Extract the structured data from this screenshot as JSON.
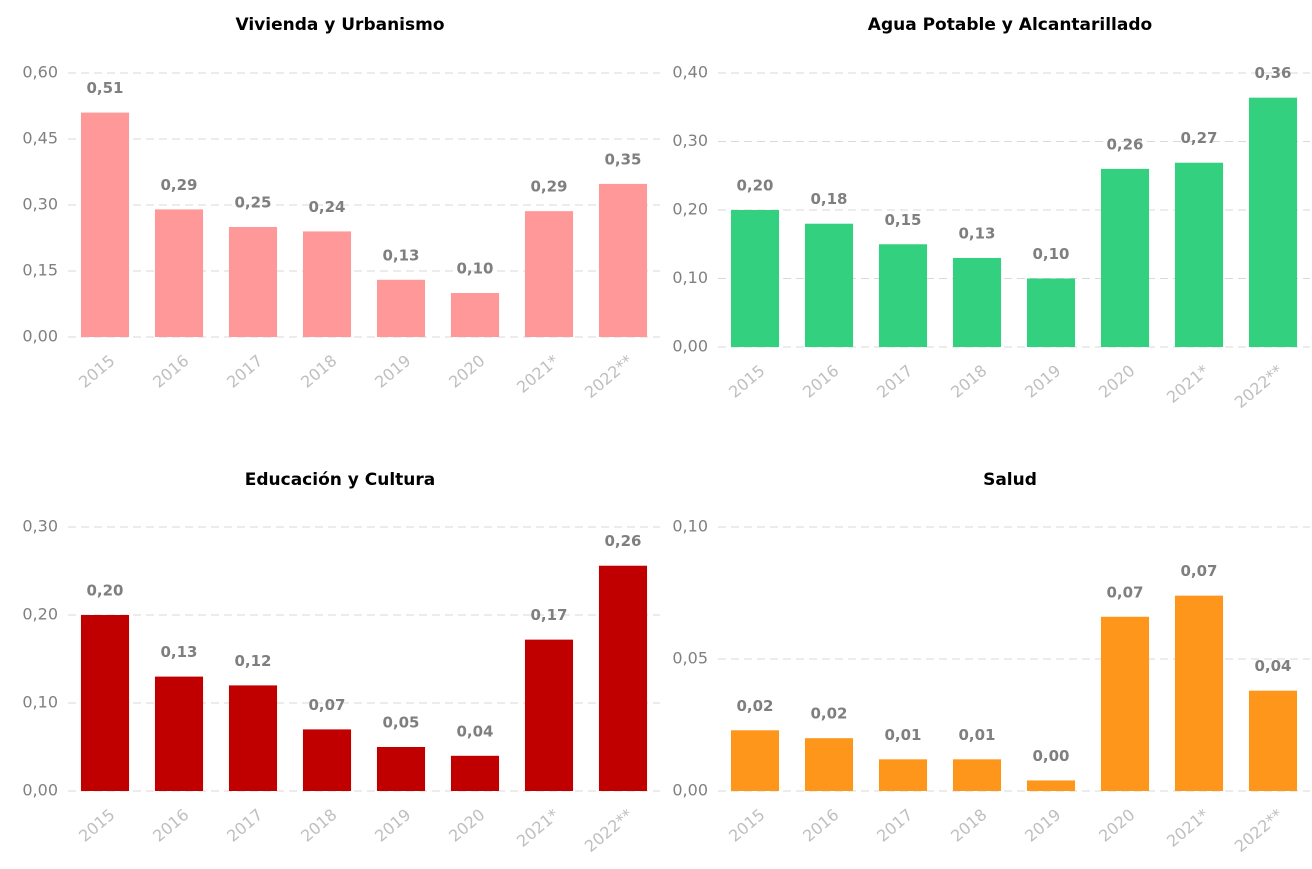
{
  "chart_data": [
    {
      "type": "bar",
      "title": "Vivienda y Urbanismo",
      "color": "#ff9999",
      "grid": true,
      "categories": [
        "2015",
        "2016",
        "2017",
        "2018",
        "2019",
        "2020",
        "2021*",
        "2022**"
      ],
      "values": [
        0.51,
        0.29,
        0.25,
        0.24,
        0.13,
        0.1,
        0.286,
        0.348
      ],
      "value_labels": [
        "0,51",
        "0,29",
        "0,25",
        "0,24",
        "0,13",
        "0,10",
        "0,29",
        "0,35"
      ],
      "ylim": [
        0,
        0.6
      ],
      "yticks": [
        {
          "value": 0,
          "label": "0,00"
        },
        {
          "value": 0.15,
          "label": "0,15"
        },
        {
          "value": 0.3,
          "label": "0,30"
        },
        {
          "value": 0.45,
          "label": "0,45"
        },
        {
          "value": 0.6,
          "label": "0,60"
        }
      ]
    },
    {
      "type": "bar",
      "title": "Agua Potable y Alcantarillado",
      "color": "#33d17f",
      "grid": true,
      "categories": [
        "2015",
        "2016",
        "2017",
        "2018",
        "2019",
        "2020",
        "2021*",
        "2022**"
      ],
      "values": [
        0.2,
        0.18,
        0.15,
        0.13,
        0.1,
        0.26,
        0.269,
        0.364
      ],
      "value_labels": [
        "0,20",
        "0,18",
        "0,15",
        "0,13",
        "0,10",
        "0,26",
        "0,27",
        "0,36"
      ],
      "ylim": [
        0,
        0.4
      ],
      "yticks": [
        {
          "value": 0,
          "label": "0,00"
        },
        {
          "value": 0.1,
          "label": "0,10"
        },
        {
          "value": 0.2,
          "label": "0,20"
        },
        {
          "value": 0.3,
          "label": "0,30"
        },
        {
          "value": 0.4,
          "label": "0,40"
        }
      ]
    },
    {
      "type": "bar",
      "title": "Educación y Cultura",
      "color": "#c00000",
      "grid": true,
      "categories": [
        "2015",
        "2016",
        "2017",
        "2018",
        "2019",
        "2020",
        "2021*",
        "2022**"
      ],
      "values": [
        0.2,
        0.13,
        0.12,
        0.07,
        0.05,
        0.04,
        0.172,
        0.256
      ],
      "value_labels": [
        "0,20",
        "0,13",
        "0,12",
        "0,07",
        "0,05",
        "0,04",
        "0,17",
        "0,26"
      ],
      "ylim": [
        0,
        0.3
      ],
      "yticks": [
        {
          "value": 0,
          "label": "0,00"
        },
        {
          "value": 0.1,
          "label": "0,10"
        },
        {
          "value": 0.2,
          "label": "0,20"
        },
        {
          "value": 0.3,
          "label": "0,30"
        }
      ]
    },
    {
      "type": "bar",
      "title": "Salud",
      "color": "#ff961c",
      "grid": true,
      "categories": [
        "2015",
        "2016",
        "2017",
        "2018",
        "2019",
        "2020",
        "2021*",
        "2022**"
      ],
      "values": [
        0.023,
        0.02,
        0.012,
        0.012,
        0.004,
        0.066,
        0.074,
        0.038
      ],
      "value_labels": [
        "0,02",
        "0,02",
        "0,01",
        "0,01",
        "0,00",
        "0,07",
        "0,07",
        "0,04"
      ],
      "ylim": [
        0,
        0.1
      ],
      "yticks": [
        {
          "value": 0,
          "label": "0,00"
        },
        {
          "value": 0.05,
          "label": "0,05"
        },
        {
          "value": 0.1,
          "label": "0,10"
        }
      ]
    }
  ]
}
